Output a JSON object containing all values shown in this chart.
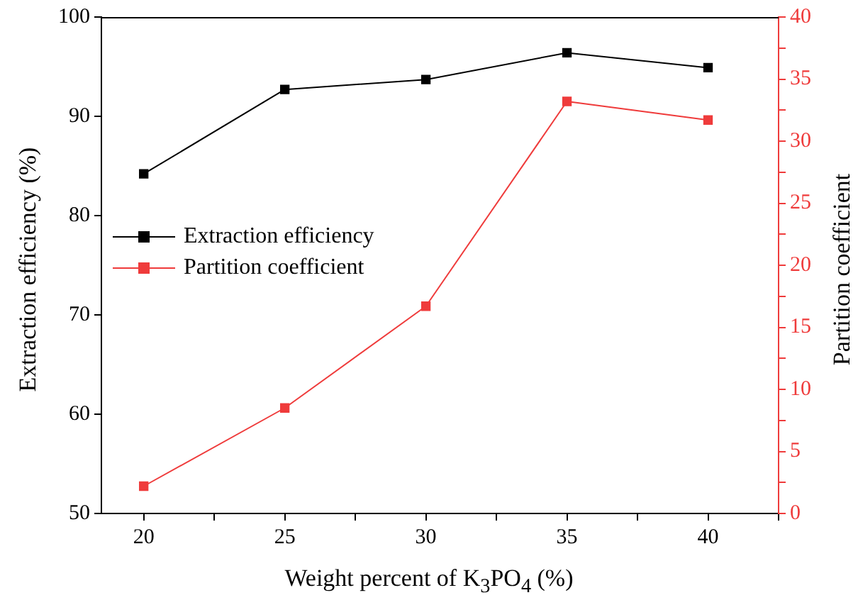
{
  "chart_data": {
    "type": "line",
    "xlabel": "Weight percent of K$_{3}$PO$_{4}$ (%)",
    "ylabel": "Extraction efficiency (%)",
    "y2label": "Partition coefficient",
    "x": [
      20,
      25,
      30,
      35,
      40
    ],
    "series": [
      {
        "name": "Extraction efficiency",
        "color": "#000000",
        "values": [
          84.2,
          92.7,
          93.7,
          96.4,
          94.9
        ]
      },
      {
        "name": "Partition coefficient",
        "color": "#ef3b3b",
        "axis": "y2",
        "values": [
          2.2,
          8.5,
          16.7,
          33.2,
          31.7
        ]
      }
    ],
    "xlim": [
      18.5,
      42.5
    ],
    "xticks": [
      20,
      {
        "value": 22.5,
        "label": null
      },
      25,
      {
        "value": 27.5,
        "label": null
      },
      30,
      {
        "value": 32.5,
        "label": null
      },
      35,
      {
        "value": 37.5,
        "label": null
      },
      40,
      {
        "value": 42.5,
        "label": null
      }
    ],
    "ylim": [
      50,
      100
    ],
    "yticks": [
      50,
      60,
      70,
      80,
      90,
      100
    ],
    "y2lim": [
      0,
      40
    ],
    "y2ticks": [
      0,
      {
        "value": 2.5,
        "label": null
      },
      5,
      {
        "value": 7.5,
        "label": null
      },
      10,
      {
        "value": 12.5,
        "label": null
      },
      15,
      {
        "value": 17.5,
        "label": null
      },
      20,
      {
        "value": 22.5,
        "label": null
      },
      25,
      {
        "value": 27.5,
        "label": null
      },
      30,
      {
        "value": 32.5,
        "label": null
      },
      35,
      {
        "value": 37.5,
        "label": null
      },
      40
    ],
    "marker": "square",
    "line_style": "solid",
    "legend": "left",
    "grid": false
  }
}
